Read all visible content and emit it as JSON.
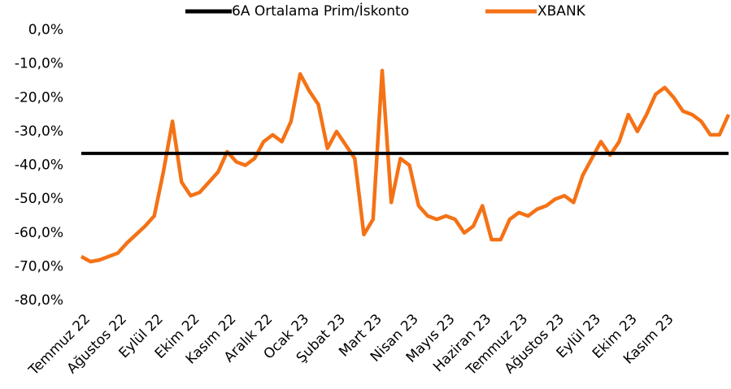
{
  "chart_data": {
    "type": "line",
    "categories": [
      "Temmuz 22",
      null,
      null,
      null,
      "Ağustos 22",
      null,
      null,
      null,
      "Eylül 22",
      null,
      null,
      null,
      "Ekim 22",
      null,
      null,
      null,
      "Kasım 22",
      null,
      null,
      null,
      "Aralık 22",
      null,
      null,
      null,
      "Ocak 23",
      null,
      null,
      null,
      "Şubat 23",
      null,
      null,
      null,
      "Mart 23",
      null,
      null,
      null,
      "Nisan 23",
      null,
      null,
      null,
      "Mayıs 23",
      null,
      null,
      null,
      "Haziran 23",
      null,
      null,
      null,
      "Temmuz 23",
      null,
      null,
      null,
      "Ağustos 23",
      null,
      null,
      null,
      "Eylül 23",
      null,
      null,
      null,
      "Ekim 23",
      null,
      null,
      null,
      "Kasım 23",
      null,
      null,
      null,
      null,
      null,
      null,
      null
    ],
    "series": [
      {
        "name": "6A Ortalama Prim/İskonto",
        "color": "#000000",
        "values": [
          -36.5,
          -36.5,
          -36.5,
          -36.5,
          -36.5,
          -36.5,
          -36.5,
          -36.5,
          -36.5,
          -36.5,
          -36.5,
          -36.5,
          -36.5,
          -36.5,
          -36.5,
          -36.5,
          -36.5,
          -36.5,
          -36.5,
          -36.5,
          -36.5,
          -36.5,
          -36.5,
          -36.5,
          -36.5,
          -36.5,
          -36.5,
          -36.5,
          -36.5,
          -36.5,
          -36.5,
          -36.5,
          -36.5,
          -36.5,
          -36.5,
          -36.5,
          -36.5,
          -36.5,
          -36.5,
          -36.5,
          -36.5,
          -36.5,
          -36.5,
          -36.5,
          -36.5,
          -36.5,
          -36.5,
          -36.5,
          -36.5,
          -36.5,
          -36.5,
          -36.5,
          -36.5,
          -36.5,
          -36.5,
          -36.5,
          -36.5,
          -36.5,
          -36.5,
          -36.5,
          -36.5,
          -36.5,
          -36.5,
          -36.5,
          -36.5,
          -36.5,
          -36.5,
          -36.5,
          -36.5,
          -36.5,
          -36.5,
          -36.5
        ]
      },
      {
        "name": "XBANK",
        "color": "#f47216",
        "values": [
          -67,
          -68.5,
          -68,
          -67,
          -66,
          -63,
          -60.5,
          -58,
          -55,
          -42,
          -27,
          -45,
          -49,
          -48,
          -45,
          -42,
          -36,
          -39,
          -40,
          -38,
          -33,
          -31,
          -33,
          -27,
          -13,
          -18,
          -22,
          -35,
          -30,
          -34,
          -38,
          -60.5,
          -56,
          -12,
          -51,
          -38,
          -40,
          -52,
          -55,
          -56,
          -55,
          -56,
          -60,
          -58,
          -52,
          -62,
          -62,
          -56,
          -54,
          -55,
          -53,
          -52,
          -50,
          -49,
          -51,
          -43,
          -38,
          -33,
          -37,
          -33,
          -25,
          -30,
          -25,
          -19,
          -17,
          -20,
          -24,
          -25,
          -27,
          -31,
          -31,
          -25
        ]
      }
    ],
    "ylim": [
      -80,
      0
    ],
    "yticks": [
      {
        "value": 0,
        "label": "0,0%"
      },
      {
        "value": -10,
        "label": "-10,0%"
      },
      {
        "value": -20,
        "label": "-20,0%"
      },
      {
        "value": -30,
        "label": "-30,0%"
      },
      {
        "value": -40,
        "label": "-40,0%"
      },
      {
        "value": -50,
        "label": "-50,0%"
      },
      {
        "value": -60,
        "label": "-60,0%"
      },
      {
        "value": -70,
        "label": "-70,0%"
      },
      {
        "value": -80,
        "label": "-80,0%"
      }
    ],
    "legend": "top"
  }
}
